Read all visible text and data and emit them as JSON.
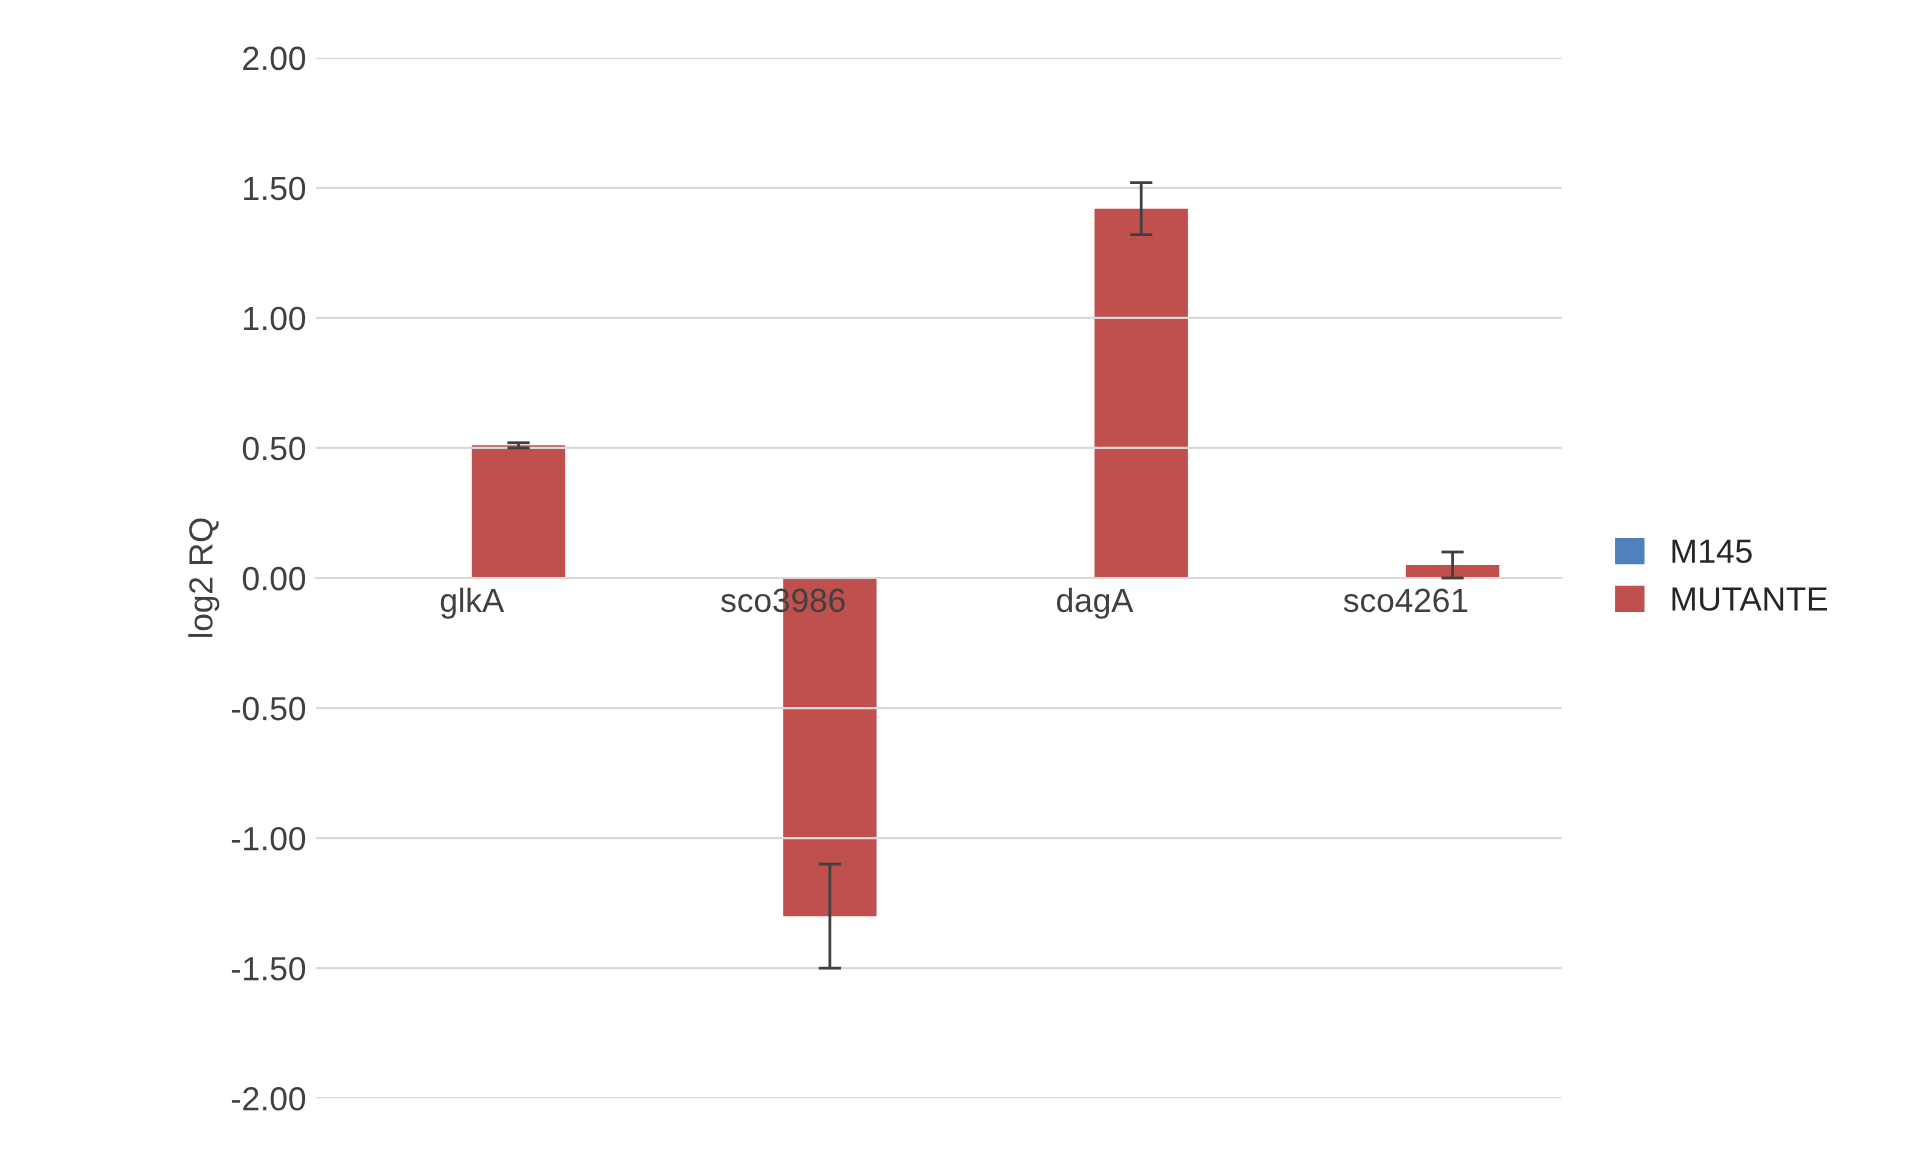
{
  "chart_data": {
    "type": "bar",
    "ylabel": "log2 RQ",
    "categories": [
      "glkA",
      "sco3986",
      "dagA",
      "sco4261"
    ],
    "series": [
      {
        "name": "M145",
        "color": "#4f81bd",
        "values": [
          0,
          0,
          0,
          0
        ]
      },
      {
        "name": "MUTANTE",
        "color": "#c0504d",
        "values": [
          0.51,
          -1.3,
          1.42,
          0.05
        ],
        "errors": [
          0.01,
          0.2,
          0.1,
          0.05
        ]
      }
    ],
    "ylim": [
      -2,
      2
    ],
    "yticks": [
      {
        "value": -2,
        "label": "-2.00"
      },
      {
        "value": -1.5,
        "label": "-1.50"
      },
      {
        "value": -1,
        "label": "-1.00"
      },
      {
        "value": -0.5,
        "label": "-0.50"
      },
      {
        "value": 0,
        "label": "0.00"
      },
      {
        "value": 0.5,
        "label": "0.50"
      },
      {
        "value": 1,
        "label": "1.00"
      },
      {
        "value": 1.5,
        "label": "1.50"
      },
      {
        "value": 2,
        "label": "2.00"
      }
    ],
    "grid": "y",
    "legend": "right"
  }
}
